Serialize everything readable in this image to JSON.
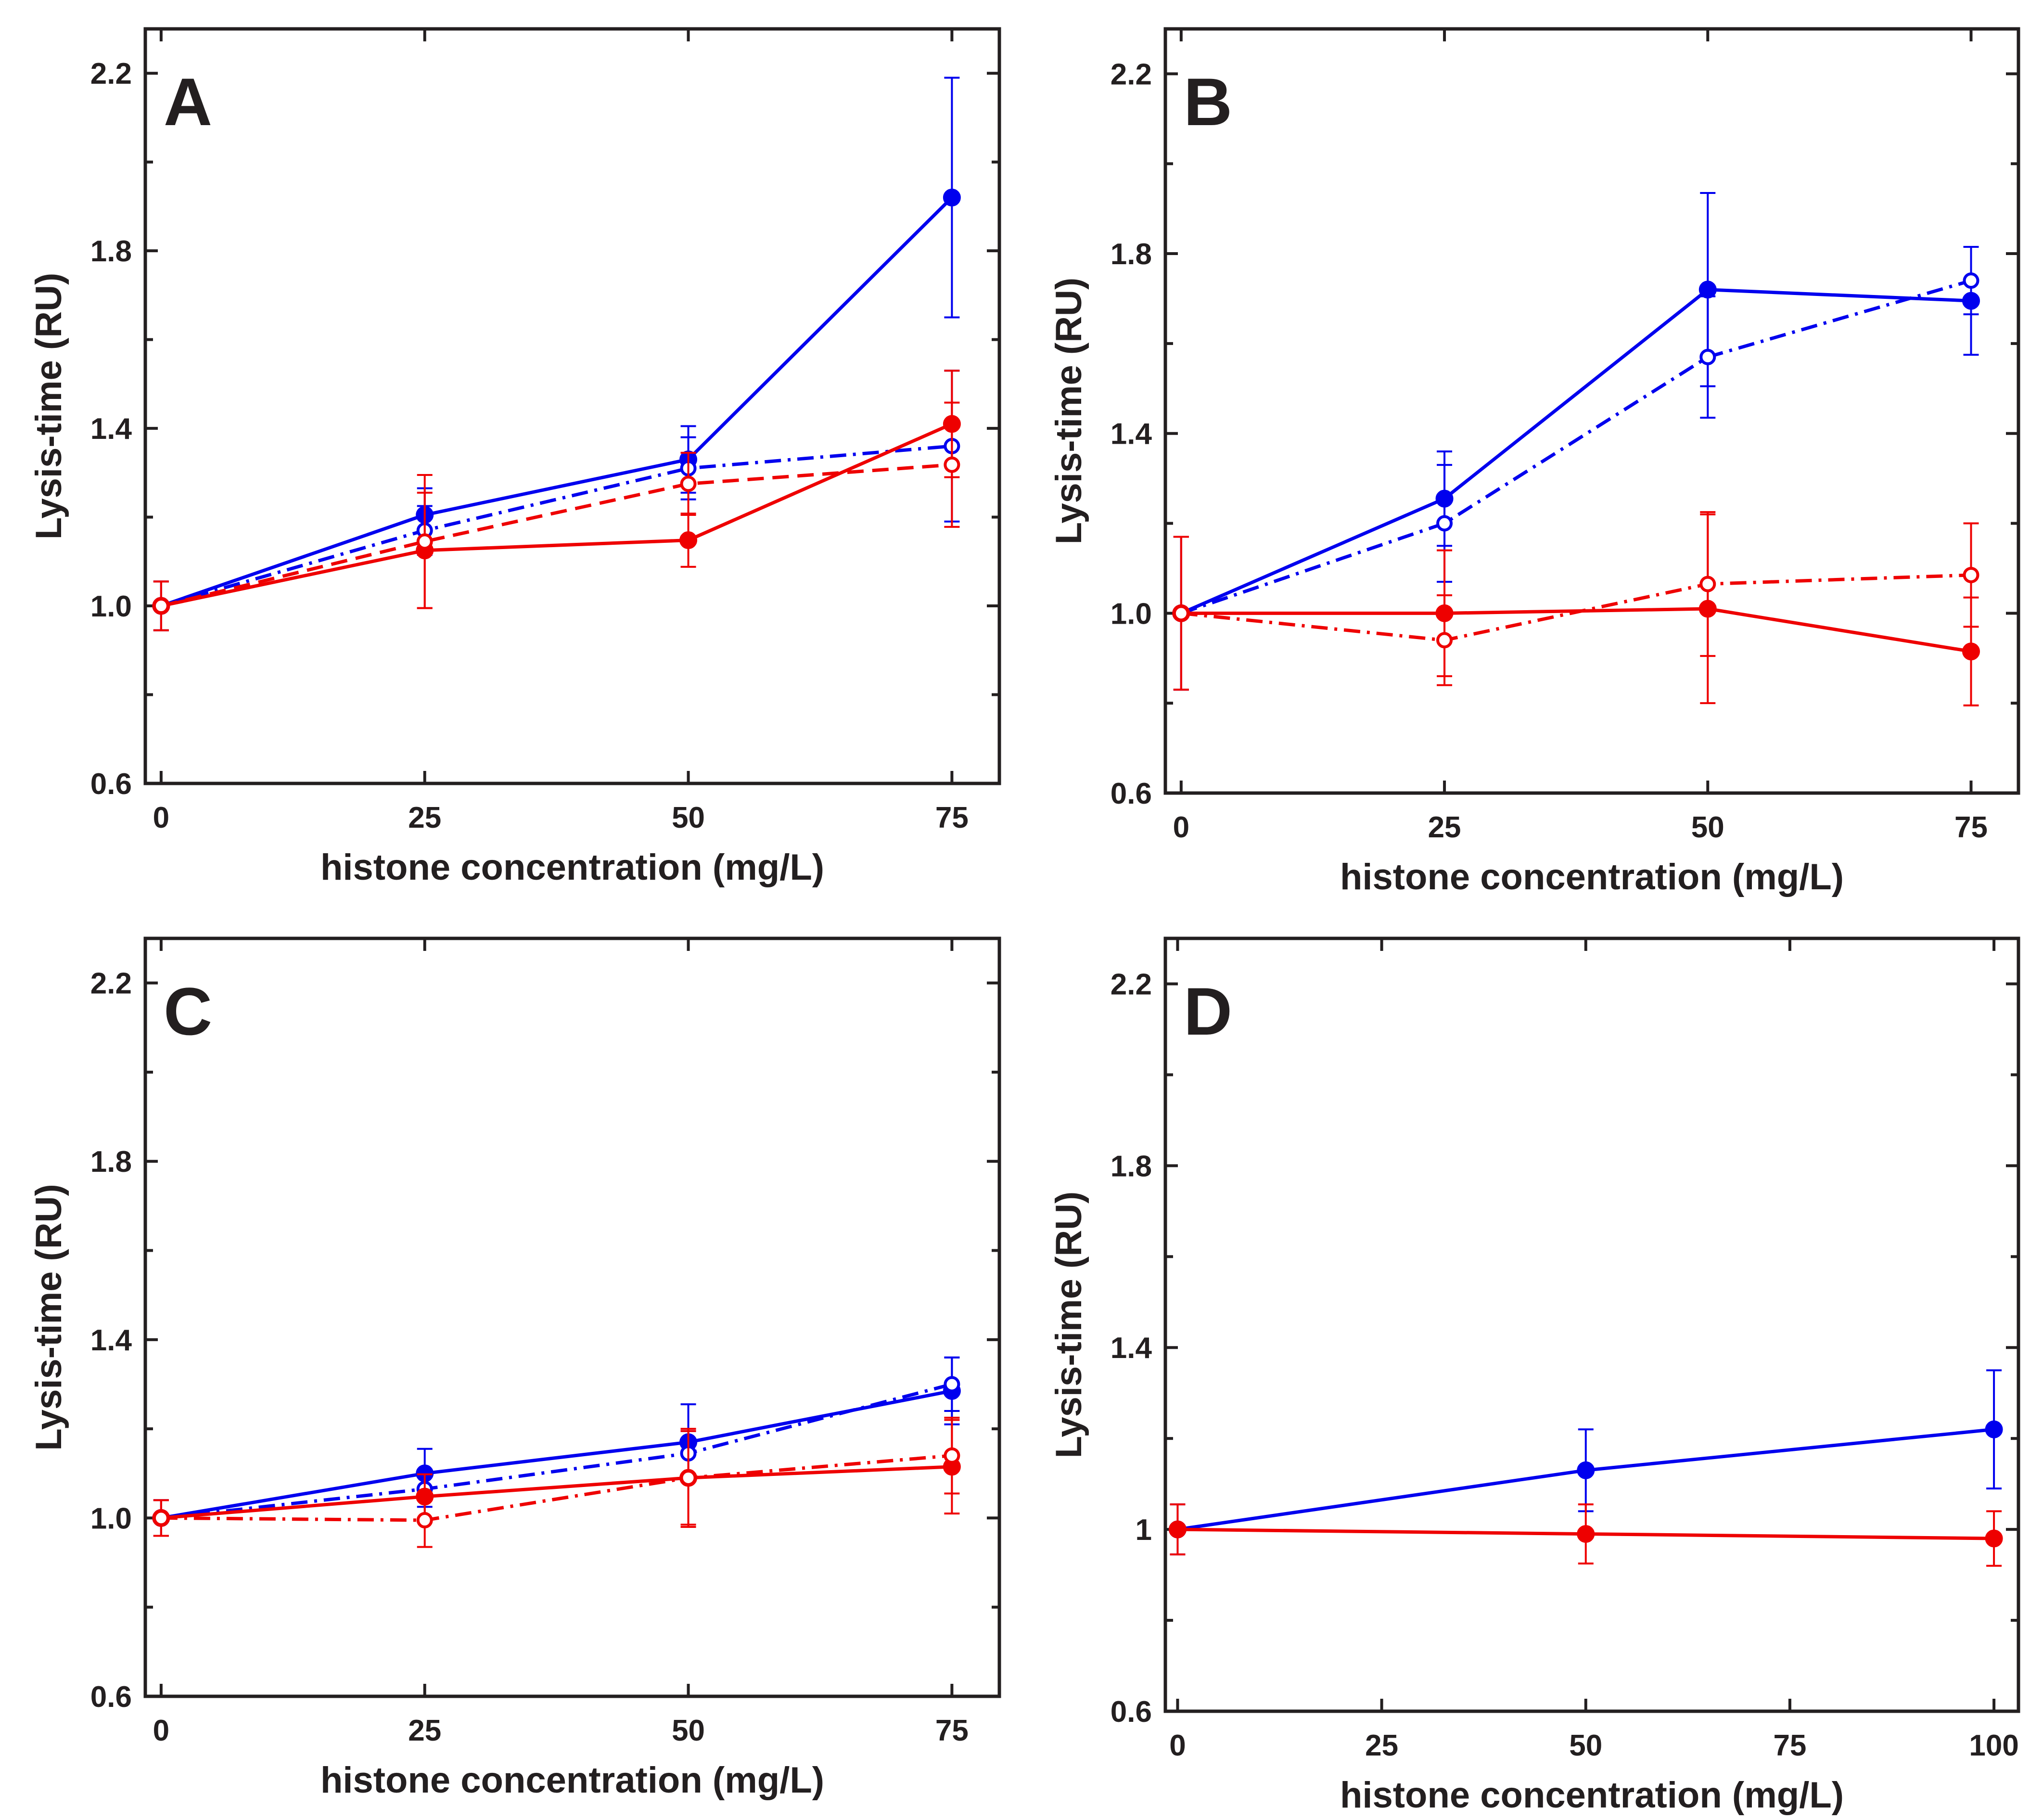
{
  "colors": {
    "blue": "#0000ee",
    "red": "#ee0000",
    "axis": "#231f20"
  },
  "chart_data": [
    {
      "type": "line",
      "panel_label": "A",
      "xlabel": "histone concentration (mg/L)",
      "ylabel": "Lysis-time (RU)",
      "x": [
        0,
        25,
        50,
        75
      ],
      "xlim": [
        -1.5,
        79.5
      ],
      "ylim": [
        0.6,
        2.3
      ],
      "xticks": [
        0,
        25,
        50,
        75
      ],
      "xticklabels": [
        "0",
        "25",
        "50",
        "75"
      ],
      "yticks": [
        0.6,
        1.0,
        1.4,
        1.8,
        2.2
      ],
      "yticklabels": [
        "0.6",
        "1.0",
        "1.4",
        "1.8",
        "2.2"
      ],
      "yminor": [
        0.8,
        1.2,
        1.6,
        2.0
      ],
      "series": [
        {
          "color": "blue",
          "marker": "filled",
          "dash": "solid",
          "values": [
            1.0,
            1.205,
            1.33,
            1.92
          ],
          "err": [
            0.055,
            0.06,
            0.075,
            0.27
          ]
        },
        {
          "color": "blue",
          "marker": "open",
          "dash": "dashdot",
          "values": [
            1.0,
            1.17,
            1.31,
            1.36
          ],
          "err": [
            0.055,
            0.055,
            0.07,
            0.17
          ]
        },
        {
          "color": "red",
          "marker": "filled",
          "dash": "solid",
          "values": [
            1.0,
            1.125,
            1.148,
            1.41
          ],
          "err": [
            0.055,
            0.13,
            0.06,
            0.12
          ]
        },
        {
          "color": "red",
          "marker": "open",
          "dash": "dashed",
          "values": [
            1.0,
            1.145,
            1.275,
            1.318
          ],
          "err": [
            0.055,
            0.15,
            0.07,
            0.14
          ]
        }
      ]
    },
    {
      "type": "line",
      "panel_label": "B",
      "xlabel": "histone concentration (mg/L)",
      "ylabel": "Lysis-time (RU)",
      "x": [
        0,
        25,
        50,
        75
      ],
      "xlim": [
        -1.5,
        79.5
      ],
      "ylim": [
        0.6,
        2.3
      ],
      "xticks": [
        0,
        25,
        50,
        75
      ],
      "xticklabels": [
        "0",
        "25",
        "50",
        "75"
      ],
      "yticks": [
        0.6,
        1.0,
        1.4,
        1.8,
        2.2
      ],
      "yticklabels": [
        "0.6",
        "1.0",
        "1.4",
        "1.8",
        "2.2"
      ],
      "yminor": [
        0.8,
        1.2,
        1.6,
        2.0
      ],
      "series": [
        {
          "color": "blue",
          "marker": "filled",
          "dash": "solid",
          "values": [
            1.0,
            1.255,
            1.72,
            1.695
          ],
          "err": [
            0.17,
            0.105,
            0.215,
            0.12
          ]
        },
        {
          "color": "blue",
          "marker": "open",
          "dash": "dashdot",
          "values": [
            1.0,
            1.2,
            1.57,
            1.74
          ],
          "err": [
            0.17,
            0.13,
            0.135,
            0.075
          ]
        },
        {
          "color": "red",
          "marker": "filled",
          "dash": "solid",
          "values": [
            1.0,
            1.0,
            1.01,
            0.915
          ],
          "err": [
            0.17,
            0.14,
            0.21,
            0.12
          ]
        },
        {
          "color": "red",
          "marker": "open",
          "dash": "dashdot",
          "values": [
            1.0,
            0.94,
            1.065,
            1.085
          ],
          "err": [
            0.17,
            0.1,
            0.16,
            0.115
          ]
        }
      ]
    },
    {
      "type": "line",
      "panel_label": "C",
      "xlabel": "histone concentration (mg/L)",
      "ylabel": "Lysis-time (RU)",
      "x": [
        0,
        25,
        50,
        75
      ],
      "xlim": [
        -1.5,
        79.5
      ],
      "ylim": [
        0.6,
        2.3
      ],
      "xticks": [
        0,
        25,
        50,
        75
      ],
      "xticklabels": [
        "0",
        "25",
        "50",
        "75"
      ],
      "yticks": [
        0.6,
        1.0,
        1.4,
        1.8,
        2.2
      ],
      "yticklabels": [
        "0.6",
        "1.0",
        "1.4",
        "1.8",
        "2.2"
      ],
      "yminor": [
        0.8,
        1.2,
        1.6,
        2.0
      ],
      "series": [
        {
          "color": "blue",
          "marker": "filled",
          "dash": "solid",
          "values": [
            1.0,
            1.1,
            1.17,
            1.285
          ],
          "err": [
            0.04,
            0.055,
            0.085,
            0.075
          ]
        },
        {
          "color": "blue",
          "marker": "open",
          "dash": "dashdot",
          "values": [
            1.0,
            1.065,
            1.145,
            1.3
          ],
          "err": [
            0.04,
            0.04,
            0.05,
            0.06
          ]
        },
        {
          "color": "red",
          "marker": "filled",
          "dash": "solid",
          "values": [
            1.0,
            1.048,
            1.09,
            1.115
          ],
          "err": [
            0.04,
            0.05,
            0.11,
            0.105
          ]
        },
        {
          "color": "red",
          "marker": "open",
          "dash": "dashdot",
          "values": [
            1.0,
            0.995,
            1.09,
            1.14
          ],
          "err": [
            0.04,
            0.06,
            0.105,
            0.085
          ]
        }
      ]
    },
    {
      "type": "line",
      "panel_label": "D",
      "xlabel": "histone concentration (mg/L)",
      "ylabel": "Lysis-time (RU)",
      "x": [
        0,
        50,
        100
      ],
      "xlim": [
        -1.5,
        103
      ],
      "ylim": [
        0.6,
        2.3
      ],
      "xticks": [
        0,
        25,
        50,
        75,
        100
      ],
      "xticklabels": [
        "0",
        "25",
        "50",
        "75",
        "100"
      ],
      "yticks": [
        0.6,
        1.0,
        1.4,
        1.8,
        2.2
      ],
      "yticklabels": [
        "0.6",
        "1",
        "1.4",
        "1.8",
        "2.2"
      ],
      "yminor": [
        0.8,
        1.2,
        1.6,
        2.0
      ],
      "series": [
        {
          "color": "blue",
          "marker": "filled",
          "dash": "solid",
          "values": [
            1.0,
            1.13,
            1.22
          ],
          "err": [
            0.055,
            0.09,
            0.13
          ]
        },
        {
          "color": "red",
          "marker": "filled",
          "dash": "solid",
          "values": [
            1.0,
            0.99,
            0.98
          ],
          "err": [
            0.055,
            0.065,
            0.06
          ]
        }
      ]
    }
  ]
}
